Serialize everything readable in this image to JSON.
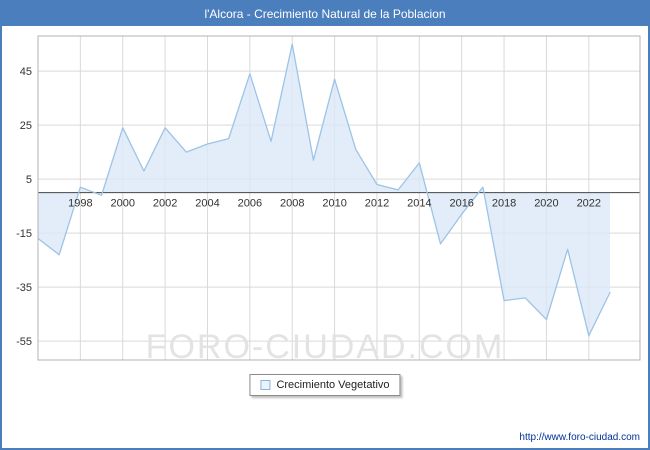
{
  "header": {
    "title": "l'Alcora - Crecimiento Natural de la Poblacion"
  },
  "legend": {
    "label": "Crecimiento Vegetativo"
  },
  "watermark": "FORO-CIUDAD.COM",
  "footer": {
    "url": "http://www.foro-ciudad.com"
  },
  "colors": {
    "header_bg": "#4a7ebc",
    "line": "#9dc3e6",
    "fill": "#dbe9f8",
    "grid": "#d9d9d9",
    "plot_border": "#b3b3b3",
    "zero_line": "#444444",
    "text": "#333333",
    "watermark": "#e3e3e3",
    "url": "#003399"
  },
  "chart_data": {
    "type": "area",
    "title": "l'Alcora - Crecimiento Natural de la Poblacion",
    "x": [
      1996,
      1997,
      1998,
      1999,
      2000,
      2001,
      2002,
      2003,
      2004,
      2005,
      2006,
      2007,
      2008,
      2009,
      2010,
      2011,
      2012,
      2013,
      2014,
      2015,
      2016,
      2017,
      2018,
      2019,
      2020,
      2021,
      2022,
      2023
    ],
    "values": [
      -17,
      -23,
      2,
      -1,
      24,
      8,
      24,
      15,
      18,
      20,
      44,
      19,
      55,
      12,
      42,
      16,
      3,
      1,
      11,
      -19,
      -8,
      2,
      -40,
      -39,
      -47,
      -21,
      -53,
      -37
    ],
    "series_name": "Crecimiento Vegetativo",
    "ylim": [
      -62,
      58
    ],
    "yticks": [
      45,
      25,
      5,
      -15,
      -35,
      -55
    ],
    "xtick_labels": [
      "1998",
      "2000",
      "2002",
      "2004",
      "2006",
      "2008",
      "2010",
      "2012",
      "2014",
      "2016",
      "2018",
      "2020",
      "2022"
    ],
    "grid": true,
    "legend_position": "bottom",
    "xlabel": "",
    "ylabel": ""
  }
}
